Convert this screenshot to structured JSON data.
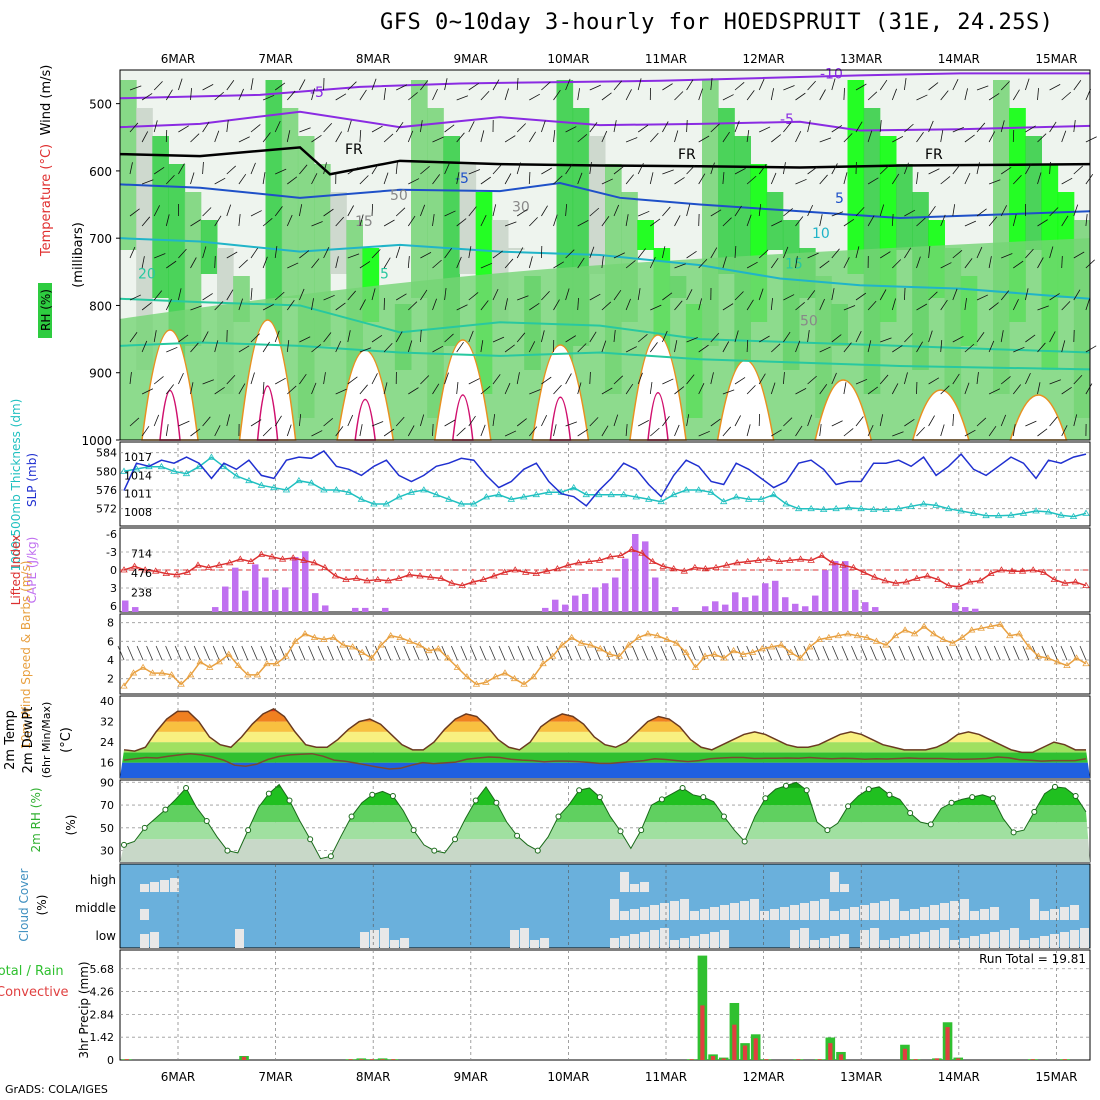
{
  "title": "GFS 0~10day 3-hourly for HOEDSPRUIT (31E, 24.25S)",
  "credit": "GrADS: COLA/IGES",
  "days": [
    "6MAR",
    "7MAR",
    "8MAR",
    "9MAR",
    "10MAR",
    "11MAR",
    "12MAR",
    "13MAR",
    "14MAR",
    "15MAR"
  ],
  "colors": {
    "rh_dark": "#2ecc40",
    "rh_mid": "#74d474",
    "rh_bright": "#00ff00",
    "rh_gray": "#c8d4c8",
    "purple": "#8a2be2",
    "blue": "#1e50c8",
    "cyan": "#20b4c8",
    "teal": "#28c8a0",
    "orange": "#e89020",
    "magenta": "#d0106e",
    "slp": "#2030d0",
    "thick": "#20c0c0",
    "cape": "#c070f0",
    "li": "#dc3030",
    "wind": "#e8a040",
    "cloud_bg": "#6ab0dc",
    "cloud_fill": "#e8e8e8",
    "precip_total": "#30c030",
    "precip_conv": "#e04040"
  },
  "chart_data": [
    {
      "type": "heatmap",
      "name": "upper_air",
      "ylabel_wind": "Wind (m/s)",
      "ylabel_temp": "Temperature (°C)",
      "ylabel_rh": "RH (%)",
      "ylabel_p": "(millibars)",
      "y_ticks": [
        "500",
        "600",
        "700",
        "800",
        "900",
        "1000"
      ],
      "ylim": [
        1000,
        450
      ],
      "contour_labels": [
        "-5",
        "-10",
        "-5",
        "FR",
        "FR",
        "FR",
        "-5",
        "5",
        "10",
        "15",
        "20",
        "5",
        "15",
        "30",
        "50",
        "50"
      ]
    },
    {
      "type": "line",
      "name": "thickness_slp",
      "ylabel_left": "1000-500mb Thickness (dm)",
      "ylabel_right": "SLP (mb)",
      "left_ticks": [
        "584",
        "580",
        "576",
        "572"
      ],
      "right_ticks": [
        "1017",
        "1014",
        "1011",
        "1008"
      ],
      "series": [
        {
          "name": "SLP (mb)",
          "values": [
            1011.5,
            1016,
            1015.5,
            1016.5,
            1016,
            1017,
            1016,
            1013.5,
            1016,
            1015,
            1016.5,
            1014,
            1013.5,
            1016.5,
            1017,
            1016.8,
            1018,
            1015.5,
            1015,
            1014,
            1015.5,
            1016.5,
            1014,
            1013,
            1014,
            1015.5,
            1016,
            1016.8,
            1016.5,
            1014,
            1012,
            1013,
            1015,
            1016,
            1013,
            1011,
            1010.5,
            1009,
            1011.5,
            1013.5,
            1016,
            1015,
            1012.5,
            1010.5,
            1014,
            1016.5,
            1015.5,
            1013,
            1012.5,
            1016,
            1015,
            1013.5,
            1012,
            1013,
            1016,
            1016.5,
            1015,
            1012.5,
            1013,
            1013,
            1016,
            1016,
            1016.5,
            1015.5,
            1017,
            1014,
            1015.5,
            1017.5,
            1015,
            1014,
            1015.5,
            1017,
            1016,
            1013.5,
            1016.5,
            1016,
            1017,
            1017.5
          ]
        },
        {
          "name": "Thickness (dm)",
          "values": [
            580,
            580.5,
            581,
            581,
            580,
            579.5,
            581,
            583,
            581,
            579,
            578,
            577,
            576.5,
            576,
            578,
            577.5,
            576,
            576,
            575.5,
            574,
            573,
            573,
            574.5,
            575.5,
            576,
            575,
            574,
            573,
            573,
            574.5,
            575,
            574,
            574.5,
            575,
            575.5,
            575.5,
            576.5,
            575,
            575,
            575,
            575,
            574.5,
            574,
            573.5,
            575,
            576,
            576,
            575.5,
            573.5,
            574.5,
            574,
            574,
            575,
            573,
            572,
            572,
            571.8,
            572,
            572.2,
            572,
            571.8,
            571.8,
            572,
            572.5,
            573,
            572.7,
            572,
            571.5,
            571,
            570.5,
            570.5,
            570.6,
            571,
            571.5,
            571.3,
            570.6,
            570.3,
            571
          ]
        }
      ]
    },
    {
      "type": "bar",
      "name": "cape_li",
      "ylabel_left": "Lifted Index",
      "ylabel_right": "CAPE (J/kg)",
      "left_ticks": [
        "-6",
        "-3",
        "0",
        "3",
        "6"
      ],
      "right_ticks": [
        "714",
        "476",
        "238"
      ],
      "cape": [
        140,
        60,
        0,
        0,
        0,
        0,
        0,
        0,
        0,
        60,
        310,
        540,
        260,
        580,
        420,
        270,
        300,
        670,
        740,
        230,
        80,
        0,
        0,
        50,
        50,
        0,
        50,
        0,
        0,
        0,
        0,
        0,
        0,
        0,
        0,
        0,
        0,
        0,
        0,
        0,
        0,
        0,
        50,
        150,
        90,
        200,
        220,
        300,
        350,
        420,
        650,
        950,
        860,
        420,
        0,
        60,
        0,
        0,
        70,
        130,
        90,
        240,
        180,
        200,
        350,
        380,
        180,
        100,
        70,
        200,
        510,
        620,
        620,
        270,
        120,
        60,
        0,
        0,
        0,
        0,
        0,
        0,
        0,
        110,
        60,
        40,
        0,
        0,
        0,
        0,
        0,
        0,
        0,
        0,
        0,
        0,
        0
      ],
      "lifted_index": [
        0,
        -0.6,
        0,
        0.2,
        0.6,
        0.8,
        0.4,
        -0.8,
        -0.4,
        -0.8,
        -1.2,
        -1.8,
        -1.4,
        -2.6,
        -2.2,
        -1.8,
        -2,
        -1.6,
        -1.2,
        -0.4,
        1,
        1.6,
        1.4,
        1.8,
        1.6,
        1.8,
        1.4,
        0.8,
        1,
        1.2,
        1.4,
        2.2,
        2.6,
        2,
        1.6,
        1,
        0.4,
        0,
        0.4,
        0.6,
        0.2,
        -0.2,
        -0.8,
        -1.2,
        -1.4,
        -1.6,
        -2.2,
        -2.4,
        -3.4,
        -2.8,
        -1.4,
        -0.6,
        -0.2,
        0.2,
        -0.4,
        -0.2,
        -0.4,
        -0.8,
        -1.2,
        -1.4,
        -1.6,
        -1.8,
        -1.4,
        -1.6,
        -1.8,
        -1.6,
        -2.4,
        -1.2,
        -0.8,
        -0.4,
        0.4,
        1.2,
        1.8,
        2.2,
        2,
        1.4,
        1,
        1.6,
        2.6,
        2.8,
        2,
        1.8,
        0.6,
        0,
        0.2,
        0.2,
        0,
        0.4,
        1.6,
        2.2,
        2,
        2.6
      ]
    },
    {
      "type": "line",
      "name": "wind10m",
      "ylabel": "10m Wind Speed & Barbs (m/s)",
      "ticks": [
        "8",
        "6",
        "4",
        "2"
      ],
      "values": [
        1.2,
        2.6,
        3.2,
        2.6,
        2.6,
        2.4,
        1.4,
        2.4,
        3.8,
        3.2,
        3.8,
        4.6,
        3.4,
        2.4,
        2.4,
        3.6,
        3.6,
        4.4,
        6,
        6.8,
        6.4,
        6.2,
        6.4,
        5.6,
        5.4,
        4.8,
        4.2,
        5.6,
        6.6,
        6.4,
        6,
        5.6,
        5,
        5.2,
        4.2,
        3.2,
        2.2,
        1.4,
        1.6,
        2.2,
        2.6,
        2,
        1.4,
        2.2,
        3.6,
        4.4,
        5.6,
        6.4,
        5.8,
        5.6,
        5.2,
        4.6,
        4.4,
        5.6,
        6.4,
        6.8,
        6.6,
        6.2,
        5.8,
        4.8,
        3.2,
        4.4,
        4.6,
        4.2,
        5,
        4.6,
        4.8,
        5.2,
        5.4,
        5.6,
        4.8,
        4.2,
        5.4,
        6.2,
        6.4,
        6.6,
        6.8,
        6.6,
        6.4,
        6,
        5.6,
        6.6,
        7.2,
        6.8,
        7.6,
        6.8,
        6.2,
        5.8,
        6.4,
        7.2,
        7.4,
        7.6,
        7.8,
        6.6,
        6.8,
        5.4,
        4.4,
        4.2,
        3.8,
        3.4,
        4.2,
        3.6
      ]
    },
    {
      "type": "area",
      "name": "temp2m",
      "ylabel": "2m Temp 2m DewPt (6hr Min/Max) (°C)",
      "ticks": [
        "40",
        "32",
        "24",
        "16"
      ],
      "temperature": [
        21,
        20.5,
        22,
        28,
        33,
        36,
        36,
        32,
        26,
        23,
        22,
        26,
        31,
        35,
        37,
        34,
        28,
        23,
        22,
        22,
        25,
        29,
        32,
        33,
        31,
        27,
        23,
        21,
        21,
        24,
        29,
        33,
        35,
        34,
        30,
        25,
        22,
        21,
        24,
        30,
        33,
        35,
        34,
        31,
        26,
        23,
        22,
        24,
        28,
        32,
        34,
        33,
        30,
        25,
        22,
        21,
        23,
        25,
        27,
        28,
        27,
        25,
        23,
        22,
        22,
        23,
        25,
        27,
        28,
        27,
        25,
        23,
        22,
        21,
        21,
        21,
        22,
        24,
        27,
        28,
        27,
        25,
        23,
        21,
        20,
        20,
        22,
        24,
        23,
        21,
        21
      ],
      "dewpoint": [
        17,
        17.5,
        18,
        17.8,
        18.5,
        19,
        19.5,
        19,
        18.2,
        17,
        15,
        14.6,
        15.4,
        17.2,
        18.4,
        19,
        19.3,
        19.5,
        18.5,
        17,
        16.5,
        15.8,
        15,
        14.2,
        13.5,
        13.8,
        15,
        16,
        15.6,
        15.9,
        16.2,
        17.3,
        17.8,
        18.2,
        18,
        17.3,
        17,
        16.8,
        16.3,
        16.6,
        16.6,
        16.4,
        16.1,
        15.7,
        15.7,
        16.1,
        16.4,
        16.8,
        17.5,
        17.2,
        16.8,
        16.4,
        16.8,
        17.5,
        17.8,
        18,
        18,
        17.6,
        17.7,
        17.7,
        17.8,
        17.7,
        18,
        17.7,
        17.5,
        17.7,
        17.6,
        17.3,
        17.5,
        17.4,
        17.6,
        17.8,
        17.6,
        17.6,
        17.6,
        17.3,
        17.3,
        17.4,
        17.6,
        18.2,
        17.9,
        17.1,
        16.9,
        16.6,
        16.8,
        16.8,
        16.8,
        17.5
      ]
    },
    {
      "type": "area",
      "name": "rh2m",
      "ylabel": "2m RH (%)",
      "ticks": [
        "90",
        "70",
        "50",
        "30"
      ],
      "values": [
        35,
        38,
        50,
        58,
        66,
        75,
        85,
        68,
        56,
        42,
        30,
        28,
        48,
        68,
        80,
        88,
        74,
        56,
        40,
        23,
        25,
        43,
        60,
        72,
        79,
        82,
        78,
        65,
        48,
        35,
        30,
        28,
        40,
        58,
        74,
        86,
        72,
        55,
        43,
        35,
        30,
        42,
        60,
        70,
        83,
        85,
        77,
        60,
        47,
        32,
        48,
        70,
        75,
        80,
        85,
        79,
        77,
        73,
        60,
        48,
        38,
        60,
        76,
        84,
        87,
        90,
        83,
        55,
        48,
        54,
        69,
        78,
        84,
        86,
        79,
        75,
        63,
        55,
        53,
        67,
        72,
        75,
        77,
        79,
        76,
        58,
        46,
        48,
        64,
        80,
        86,
        85,
        78,
        64
      ]
    },
    {
      "type": "bar",
      "name": "cloud_cover",
      "ylabel": "Cloud Cover (%)",
      "levels": [
        "high",
        "middle",
        "low"
      ]
    },
    {
      "type": "bar",
      "name": "precip",
      "ylabel": "3hr Precip (mm)",
      "legend_total": "Total / Rain",
      "legend_conv": "Convective",
      "run_total": "Run Total = 19.81",
      "ticks": [
        "5.68",
        "4.26",
        "2.84",
        "1.42",
        "0"
      ],
      "total": [
        0.05,
        0,
        0,
        0,
        0,
        0,
        0,
        0,
        0,
        0,
        0,
        0.25,
        0,
        0,
        0,
        0,
        0,
        0,
        0,
        0,
        0,
        0.05,
        0.1,
        0.05,
        0.1,
        0.05,
        0,
        0,
        0,
        0,
        0,
        0,
        0,
        0,
        0,
        0,
        0,
        0,
        0,
        0,
        0,
        0,
        0,
        0,
        0,
        0,
        0,
        0,
        0,
        0,
        0,
        0,
        0,
        0.05,
        6.5,
        0.35,
        0.15,
        3.55,
        1.05,
        1.6,
        0.05,
        0,
        0,
        0.05,
        0,
        0.05,
        1.4,
        0.5,
        0,
        0,
        0,
        0,
        0,
        0.95,
        0.05,
        0,
        0.1,
        2.35,
        0.15,
        0,
        0,
        0,
        0,
        0,
        0,
        0.05,
        0,
        0,
        0.05,
        0,
        0
      ],
      "convective": [
        0.05,
        0,
        0,
        0,
        0,
        0,
        0,
        0,
        0,
        0,
        0,
        0.2,
        0,
        0,
        0,
        0,
        0,
        0,
        0,
        0,
        0,
        0.05,
        0.05,
        0.05,
        0.05,
        0.05,
        0,
        0,
        0,
        0,
        0,
        0,
        0,
        0,
        0,
        0,
        0,
        0,
        0,
        0,
        0,
        0,
        0,
        0,
        0,
        0,
        0,
        0,
        0,
        0,
        0,
        0,
        0,
        0.05,
        3.4,
        0.25,
        0.1,
        2.2,
        0.9,
        1.35,
        0.05,
        0,
        0,
        0.05,
        0,
        0.05,
        1.05,
        0.35,
        0,
        0,
        0,
        0,
        0,
        0.7,
        0.05,
        0,
        0.1,
        2.05,
        0.1,
        0,
        0,
        0,
        0,
        0,
        0,
        0.05,
        0,
        0,
        0.05,
        0,
        0
      ]
    }
  ]
}
